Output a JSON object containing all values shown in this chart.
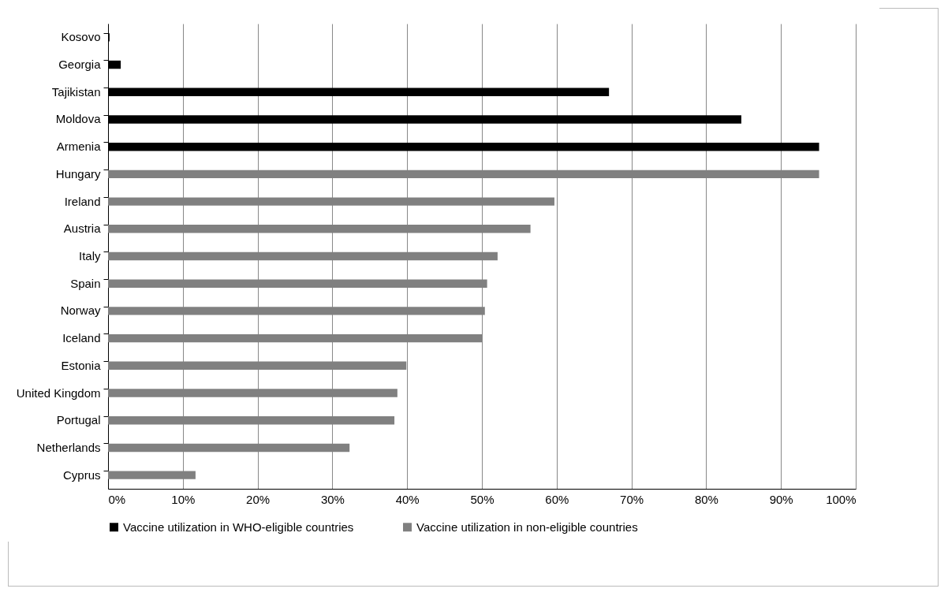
{
  "chart_data": {
    "type": "bar",
    "orientation": "horizontal",
    "categories": [
      "Kosovo",
      "Georgia",
      "Tajikistan",
      "Moldova",
      "Armenia",
      "Hungary",
      "Ireland",
      "Austria",
      "Italy",
      "Spain",
      "Norway",
      "Iceland",
      "Estonia",
      "United Kingdom",
      "Portugal",
      "Netherlands",
      "Cyprus"
    ],
    "series": [
      {
        "name": "Vaccine utilization in WHO-eligible countries",
        "color": "#000000",
        "values": [
          0.2,
          1.7,
          67,
          84.7,
          95.1,
          null,
          null,
          null,
          null,
          null,
          null,
          null,
          null,
          null,
          null,
          null,
          null
        ]
      },
      {
        "name": "Vaccine utilization in non-eligible countries",
        "color": "#808080",
        "values": [
          null,
          null,
          null,
          null,
          null,
          95.1,
          59.7,
          56.5,
          52.1,
          50.7,
          50.4,
          50,
          39.9,
          38.7,
          38.3,
          32.3,
          11.7
        ]
      }
    ],
    "xlim": [
      0,
      100
    ],
    "xticks": [
      {
        "value": 0,
        "label": "0%"
      },
      {
        "value": 10,
        "label": "10%"
      },
      {
        "value": 20,
        "label": "20%"
      },
      {
        "value": 30,
        "label": "30%"
      },
      {
        "value": 40,
        "label": "40%"
      },
      {
        "value": 50,
        "label": "50%"
      },
      {
        "value": 60,
        "label": "60%"
      },
      {
        "value": 70,
        "label": "70%"
      },
      {
        "value": 80,
        "label": "80%"
      },
      {
        "value": 90,
        "label": "90%"
      },
      {
        "value": 100,
        "label": "100%"
      }
    ],
    "grid": "x",
    "legend": "bottom"
  }
}
